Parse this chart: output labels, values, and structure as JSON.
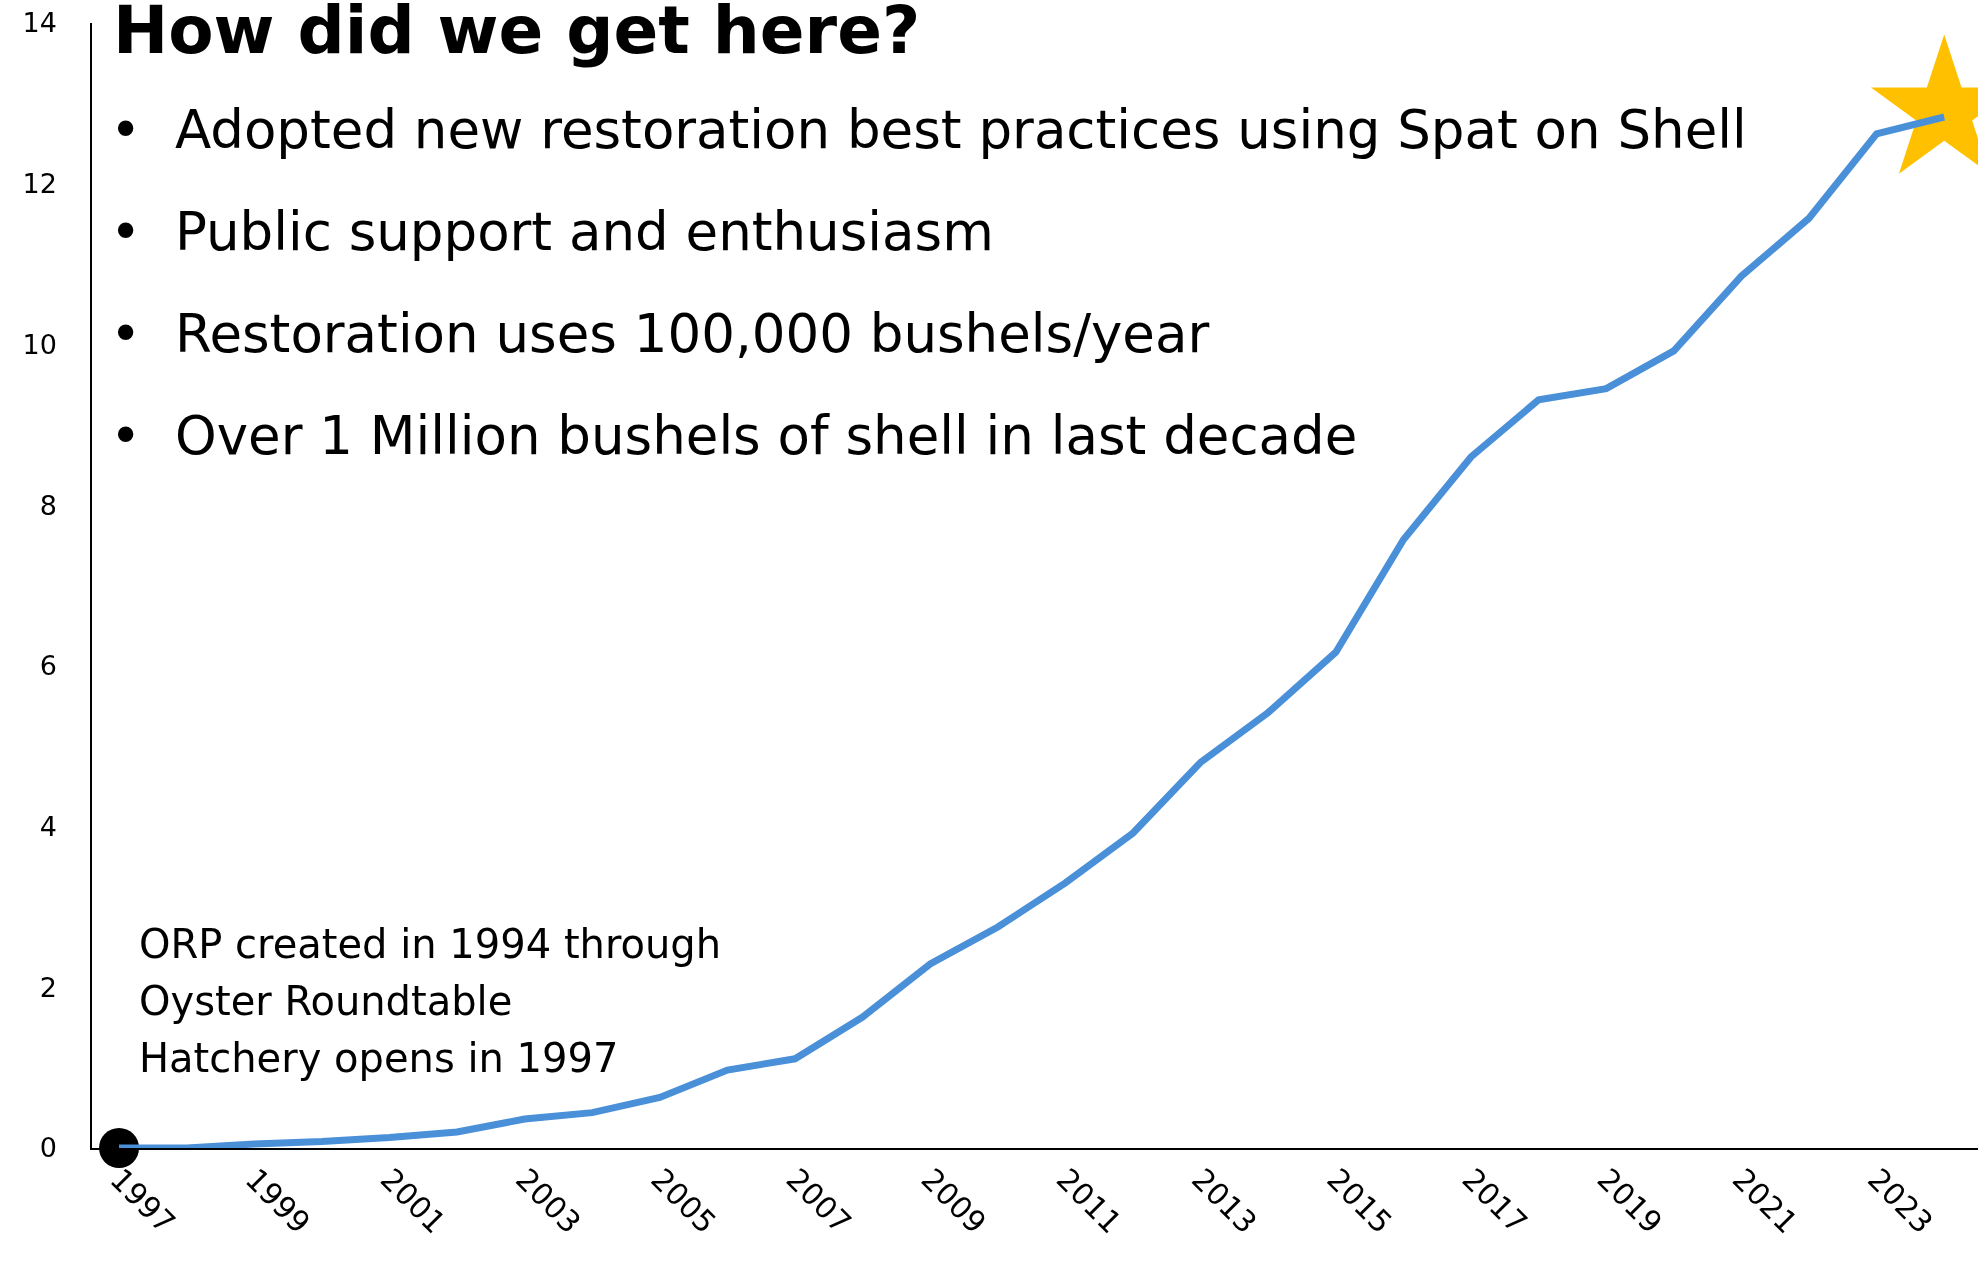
{
  "chart_data": {
    "type": "line",
    "title": "How did we get here?",
    "annotations": [
      "•  Adopted new restoration best practices using Spat on Shell",
      "•  Public support and enthusiasm",
      "•  Restoration uses 100,000 bushels/year",
      "•  Over 1 Million bushels of shell in last decade",
      "ORP created in 1994 through\nOyster Roundtable\nHatchery opens in 1997"
    ],
    "x": [
      1997,
      1998,
      1999,
      2000,
      2001,
      2002,
      2003,
      2004,
      2005,
      2006,
      2007,
      2008,
      2009,
      2010,
      2011,
      2012,
      2013,
      2014,
      2015,
      2016,
      2017,
      2018,
      2019,
      2020,
      2021,
      2022,
      2023,
      2024
    ],
    "series": [
      {
        "color": "#4a90d9",
        "values": [
          0,
          0,
          0.05,
          0.08,
          0.13,
          0.2,
          0.36,
          0.44,
          0.63,
          0.97,
          1.11,
          1.63,
          2.29,
          2.75,
          3.3,
          3.92,
          4.8,
          5.42,
          6.17,
          7.57,
          8.6,
          9.31,
          9.45,
          9.92,
          10.85,
          11.57,
          12.62,
          12.83
        ]
      },
      {
        "type": "scatter",
        "color": "#000000",
        "marker": "circle",
        "x": [
          1997
        ],
        "values": [
          0
        ]
      },
      {
        "type": "scatter",
        "color": "#ffc000",
        "marker": "star",
        "x": [
          2024
        ],
        "values": [
          12.9
        ]
      }
    ],
    "xlim": [
      1996.6,
      2024.5
    ],
    "xticks": [
      1997,
      1999,
      2001,
      2003,
      2005,
      2007,
      2009,
      2011,
      2013,
      2015,
      2017,
      2019,
      2021,
      2023
    ],
    "ylim": [
      0,
      14
    ],
    "yticks": [
      0,
      2,
      4,
      6,
      8,
      10,
      12,
      14
    ],
    "grid": false,
    "marker": "none",
    "line_style": "solid"
  }
}
